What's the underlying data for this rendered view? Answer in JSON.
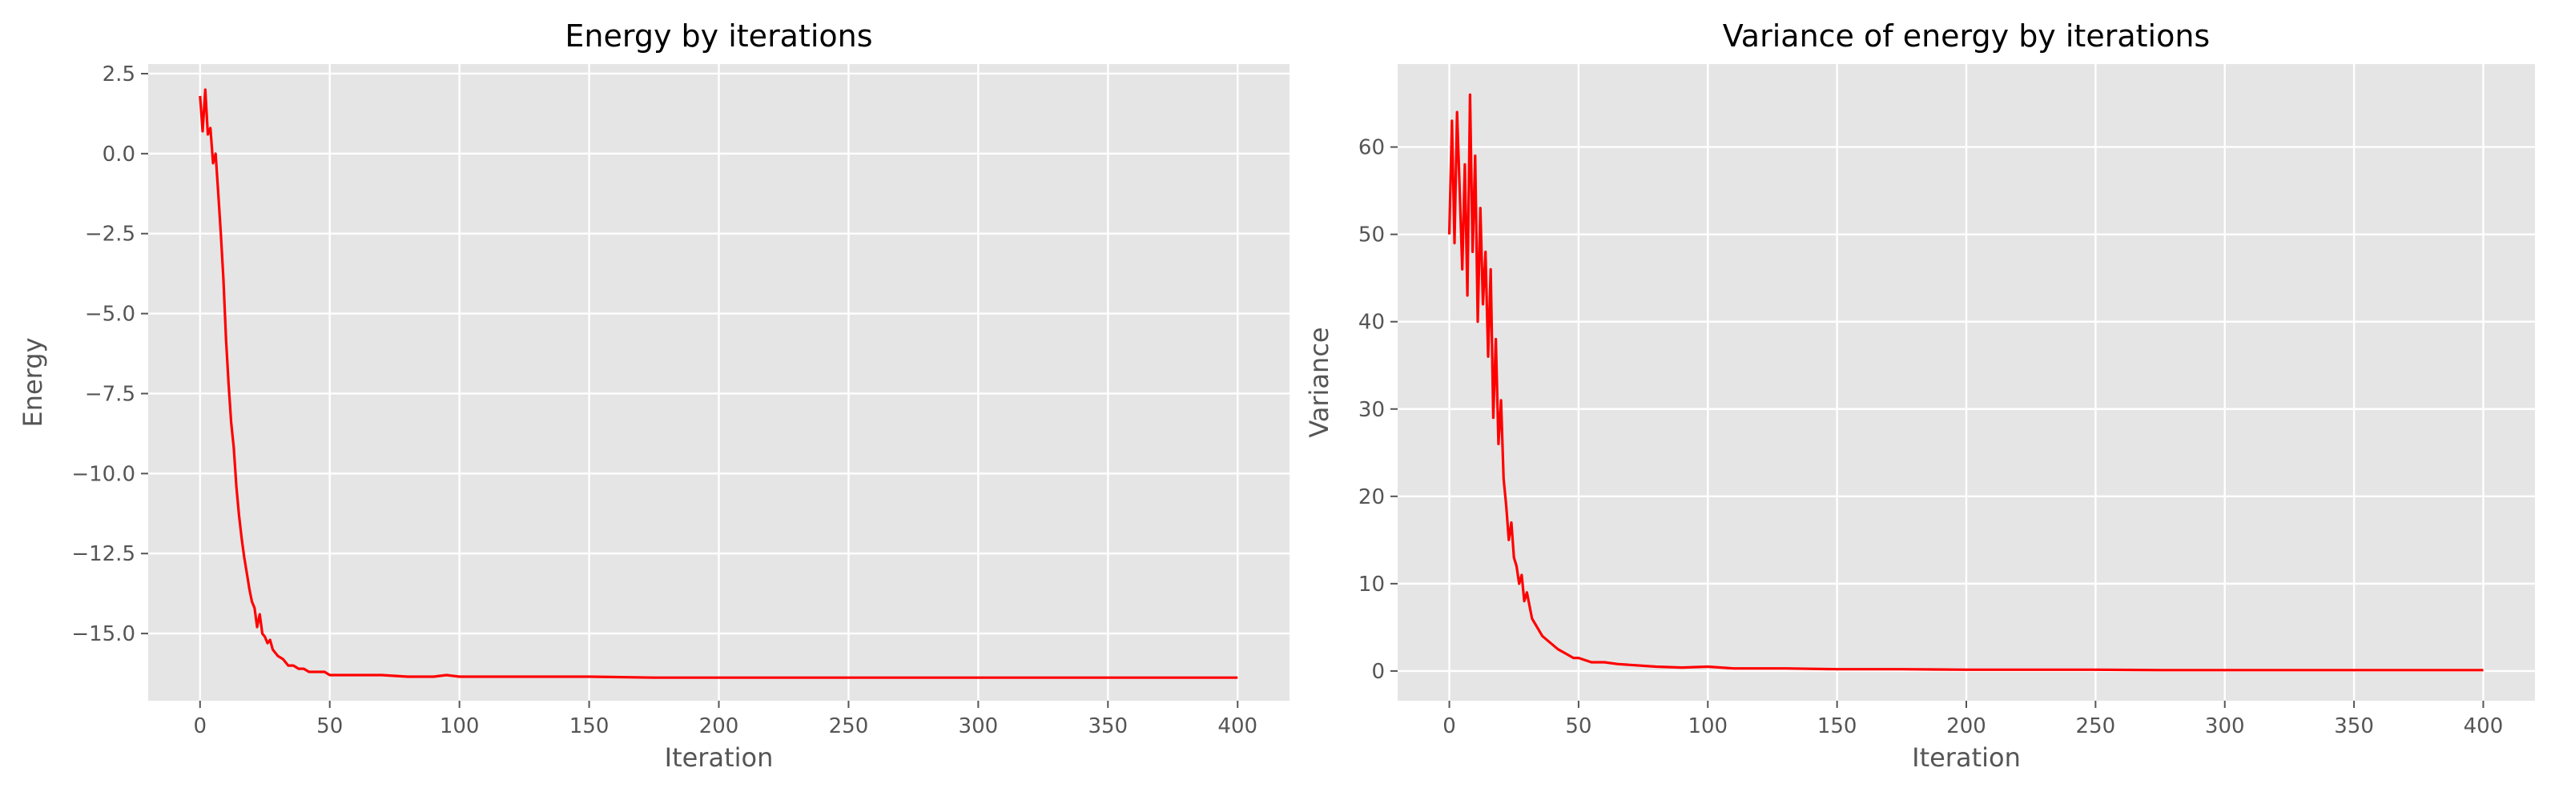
{
  "figure": {
    "background": "#ffffff",
    "plot_background": "#e5e5e5",
    "grid_color": "#ffffff",
    "line_color": "#ff0000"
  },
  "chart_data": [
    {
      "type": "line",
      "title": "Energy by iterations",
      "xlabel": "Iteration",
      "ylabel": "Energy",
      "xlim": [
        -20,
        420
      ],
      "ylim": [
        -17.1,
        2.8
      ],
      "xticks": [
        0,
        50,
        100,
        150,
        200,
        250,
        300,
        350,
        400
      ],
      "yticks": [
        2.5,
        0.0,
        -2.5,
        -5.0,
        -7.5,
        -10.0,
        -12.5,
        -15.0
      ],
      "ytick_labels": [
        "2.5",
        "0.0",
        "−2.5",
        "−5.0",
        "−7.5",
        "−10.0",
        "−12.5",
        "−15.0"
      ],
      "grid": true,
      "series": [
        {
          "color": "#ff0000",
          "x": [
            0,
            1,
            2,
            3,
            4,
            5,
            6,
            7,
            8,
            9,
            10,
            11,
            12,
            13,
            14,
            15,
            16,
            17,
            18,
            19,
            20,
            21,
            22,
            23,
            24,
            25,
            26,
            27,
            28,
            29,
            30,
            32,
            34,
            36,
            38,
            40,
            42,
            45,
            48,
            50,
            55,
            60,
            65,
            70,
            80,
            90,
            95,
            100,
            110,
            120,
            130,
            150,
            175,
            200,
            225,
            250,
            275,
            300,
            325,
            350,
            375,
            400
          ],
          "y": [
            1.8,
            0.7,
            2.0,
            0.6,
            0.8,
            -0.3,
            0.0,
            -1.2,
            -2.5,
            -3.9,
            -5.8,
            -7.2,
            -8.4,
            -9.2,
            -10.4,
            -11.3,
            -12.0,
            -12.6,
            -13.1,
            -13.6,
            -14.0,
            -14.2,
            -14.8,
            -14.4,
            -15.0,
            -15.1,
            -15.3,
            -15.2,
            -15.5,
            -15.6,
            -15.7,
            -15.8,
            -16.0,
            -16.0,
            -16.1,
            -16.1,
            -16.2,
            -16.2,
            -16.2,
            -16.3,
            -16.3,
            -16.3,
            -16.3,
            -16.3,
            -16.35,
            -16.35,
            -16.3,
            -16.35,
            -16.35,
            -16.35,
            -16.35,
            -16.35,
            -16.38,
            -16.38,
            -16.38,
            -16.38,
            -16.38,
            -16.38,
            -16.38,
            -16.38,
            -16.38,
            -16.38
          ]
        }
      ]
    },
    {
      "type": "line",
      "title": "Variance of energy by iterations",
      "xlabel": "Iteration",
      "ylabel": "Variance",
      "xlim": [
        -20,
        420
      ],
      "ylim": [
        -3.4,
        69.5
      ],
      "xticks": [
        0,
        50,
        100,
        150,
        200,
        250,
        300,
        350,
        400
      ],
      "yticks": [
        60,
        50,
        40,
        30,
        20,
        10,
        0
      ],
      "ytick_labels": [
        "60",
        "50",
        "40",
        "30",
        "20",
        "10",
        "0"
      ],
      "grid": true,
      "series": [
        {
          "color": "#ff0000",
          "x": [
            0,
            1,
            2,
            3,
            4,
            5,
            6,
            7,
            8,
            9,
            10,
            11,
            12,
            13,
            14,
            15,
            16,
            17,
            18,
            19,
            20,
            21,
            22,
            23,
            24,
            25,
            26,
            27,
            28,
            29,
            30,
            32,
            34,
            36,
            38,
            40,
            42,
            45,
            48,
            50,
            55,
            60,
            65,
            70,
            80,
            90,
            100,
            110,
            120,
            130,
            150,
            175,
            200,
            225,
            250,
            275,
            300,
            325,
            350,
            375,
            400
          ],
          "y": [
            50,
            63,
            49,
            64,
            55,
            46,
            58,
            43,
            66,
            48,
            59,
            40,
            53,
            42,
            48,
            36,
            46,
            29,
            38,
            26,
            31,
            22,
            19,
            15,
            17,
            13,
            12,
            10,
            11,
            8,
            9,
            6,
            5,
            4,
            3.5,
            3,
            2.5,
            2,
            1.5,
            1.5,
            1,
            1,
            0.8,
            0.7,
            0.5,
            0.4,
            0.5,
            0.3,
            0.3,
            0.3,
            0.2,
            0.2,
            0.15,
            0.15,
            0.15,
            0.1,
            0.1,
            0.1,
            0.1,
            0.1,
            0.1
          ]
        }
      ]
    }
  ]
}
